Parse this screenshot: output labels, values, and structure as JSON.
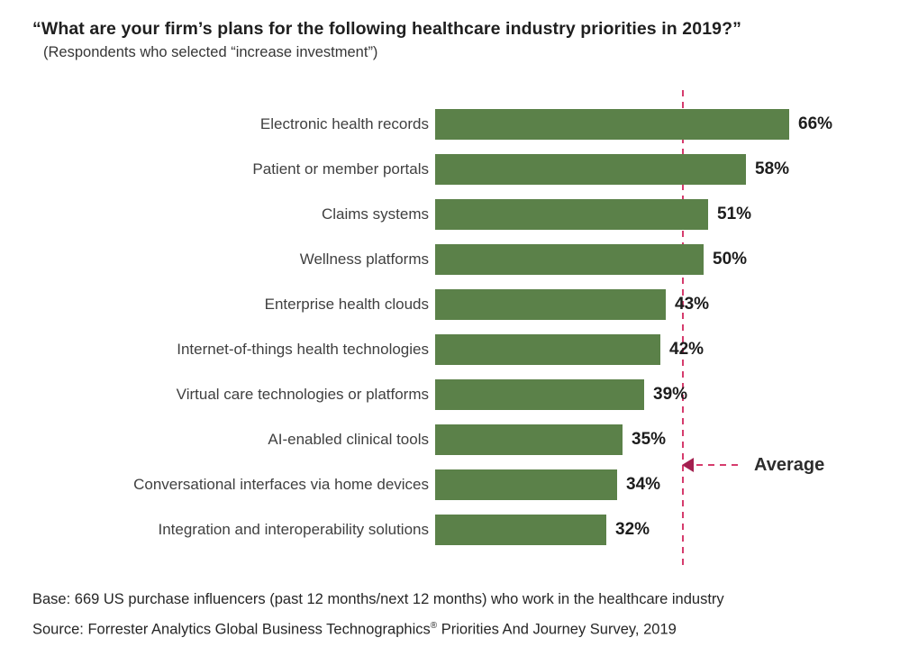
{
  "header": {
    "title": "“What are your firm’s plans for the following healthcare industry priorities in 2019?”",
    "subtitle": "(Respondents who selected “increase investment”)"
  },
  "chart_data": {
    "type": "bar",
    "orientation": "horizontal",
    "title": "“What are your firm’s plans for the following healthcare industry priorities in 2019?”",
    "subtitle": "(Respondents who selected “increase investment”)",
    "xlabel": "",
    "ylabel": "",
    "xlim": [
      0,
      100
    ],
    "unit": "%",
    "grid": false,
    "categories": [
      "Electronic health records",
      "Patient or member portals",
      "Claims systems",
      "Wellness platforms",
      "Enterprise health clouds",
      "Internet-of-things health technologies",
      "Virtual care technologies or platforms",
      "AI-enabled clinical tools",
      "Conversational interfaces via home devices",
      "Integration and interoperability solutions"
    ],
    "values": [
      66,
      58,
      51,
      50,
      43,
      42,
      39,
      35,
      34,
      32
    ],
    "value_labels": [
      "66%",
      "58%",
      "51%",
      "50%",
      "43%",
      "42%",
      "39%",
      "35%",
      "34%",
      "32%"
    ],
    "average": 45,
    "average_label": "Average",
    "bar_color": "#5b8149",
    "average_line_color": "#d63c6d",
    "average_arrow_color": "#a3204f"
  },
  "footer": {
    "base": "Base: 669 US purchase influencers (past 12 months/next 12 months) who work in the healthcare industry",
    "source_prefix": "Source: Forrester Analytics Global Business Technographics",
    "source_reg": "®",
    "source_suffix": " Priorities And Journey Survey, 2019"
  }
}
